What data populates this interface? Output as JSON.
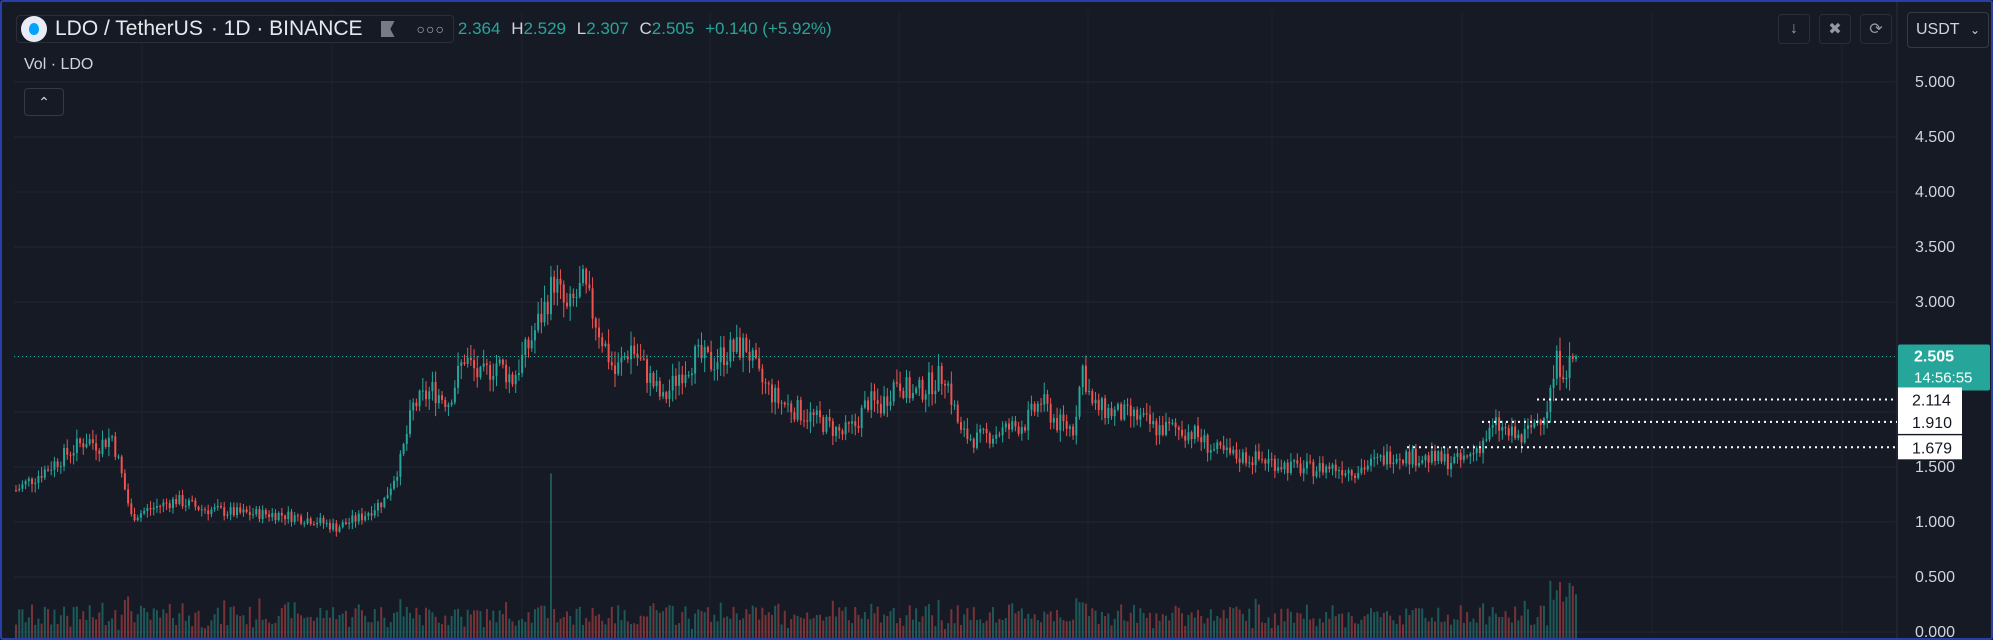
{
  "legend": {
    "symbol": "LDO / TetherUS",
    "interval": "· 1D · BINANCE",
    "ohlc_open_value": "2.364",
    "ohlc_high_key": "H",
    "ohlc_high_value": "2.529",
    "ohlc_low_key": "L",
    "ohlc_low_value": "2.307",
    "ohlc_close_key": "C",
    "ohlc_close_value": "2.505",
    "change": "+0.140 (+5.92%)",
    "more_icon": "more-dots-icon",
    "flag_icon": "flag-icon",
    "logo_icon": "lido-logo-icon"
  },
  "volume": {
    "label": "Vol · LDO",
    "collapse_icon": "chevron-up-icon"
  },
  "toolbar": {
    "icons": [
      "arrow-down-icon",
      "collapse-icon",
      "refresh-icon"
    ],
    "currency": "USDT"
  },
  "colors": {
    "up": "#26a69a",
    "down": "#ef5350",
    "background": "#161a25",
    "price_tag": "#26a69a"
  },
  "chart_data": {
    "type": "candlestick",
    "symbol": "LDO / TetherUS",
    "interval": "1D",
    "exchange": "BINANCE",
    "y_ticks": [
      "5.000",
      "4.500",
      "4.000",
      "3.500",
      "3.000",
      "2.500",
      "2.000",
      "1.500",
      "1.000",
      "0.500",
      "0.000"
    ],
    "y_range": [
      0,
      5.3
    ],
    "last_price": "2.505",
    "countdown": "14:56:55",
    "levels": [
      "2.114",
      "1.910",
      "1.679"
    ],
    "anchors": [
      [
        0,
        1.29
      ],
      [
        8,
        1.45
      ],
      [
        15,
        1.6
      ],
      [
        22,
        1.75
      ],
      [
        26,
        1.7
      ],
      [
        30,
        1.78
      ],
      [
        32,
        1.55
      ],
      [
        36,
        1.05
      ],
      [
        42,
        1.12
      ],
      [
        50,
        1.2
      ],
      [
        58,
        1.12
      ],
      [
        70,
        1.08
      ],
      [
        82,
        1.07
      ],
      [
        93,
        1.02
      ],
      [
        100,
        0.95
      ],
      [
        108,
        1.05
      ],
      [
        115,
        1.2
      ],
      [
        120,
        1.55
      ],
      [
        124,
        2.05
      ],
      [
        130,
        2.2
      ],
      [
        135,
        2.1
      ],
      [
        140,
        2.5
      ],
      [
        145,
        2.3
      ],
      [
        150,
        2.45
      ],
      [
        155,
        2.3
      ],
      [
        160,
        2.6
      ],
      [
        165,
        2.95
      ],
      [
        168,
        3.2
      ],
      [
        172,
        2.9
      ],
      [
        177,
        3.15
      ],
      [
        182,
        2.75
      ],
      [
        187,
        2.35
      ],
      [
        192,
        2.6
      ],
      [
        196,
        2.4
      ],
      [
        202,
        2.1
      ],
      [
        207,
        2.35
      ],
      [
        212,
        2.5
      ],
      [
        217,
        2.45
      ],
      [
        222,
        2.55
      ],
      [
        228,
        2.6
      ],
      [
        232,
        2.3
      ],
      [
        238,
        2.1
      ],
      [
        245,
        2.0
      ],
      [
        252,
        1.9
      ],
      [
        258,
        1.8
      ],
      [
        262,
        1.88
      ],
      [
        266,
        2.1
      ],
      [
        270,
        2.05
      ],
      [
        275,
        2.3
      ],
      [
        280,
        2.15
      ],
      [
        285,
        2.25
      ],
      [
        290,
        2.35
      ],
      [
        295,
        1.8
      ],
      [
        300,
        1.75
      ],
      [
        305,
        1.8
      ],
      [
        310,
        1.85
      ],
      [
        315,
        1.9
      ],
      [
        320,
        2.1
      ],
      [
        325,
        1.9
      ],
      [
        330,
        1.85
      ],
      [
        333,
        2.4
      ],
      [
        336,
        2.05
      ],
      [
        342,
        2.0
      ],
      [
        350,
        1.95
      ],
      [
        356,
        1.85
      ],
      [
        362,
        1.85
      ],
      [
        368,
        1.8
      ],
      [
        374,
        1.65
      ],
      [
        380,
        1.6
      ],
      [
        386,
        1.58
      ],
      [
        392,
        1.55
      ],
      [
        398,
        1.5
      ],
      [
        404,
        1.48
      ],
      [
        410,
        1.5
      ],
      [
        418,
        1.47
      ],
      [
        425,
        1.55
      ],
      [
        430,
        1.62
      ],
      [
        434,
        1.6
      ],
      [
        440,
        1.58
      ],
      [
        446,
        1.56
      ],
      [
        450,
        1.55
      ],
      [
        453,
        1.58
      ],
      [
        457,
        1.7
      ],
      [
        462,
        1.88
      ],
      [
        466,
        1.8
      ],
      [
        470,
        1.75
      ],
      [
        474,
        1.9
      ],
      [
        478,
        2.05
      ],
      [
        481,
        2.45
      ],
      [
        484,
        2.4
      ],
      [
        487,
        2.505
      ]
    ]
  }
}
